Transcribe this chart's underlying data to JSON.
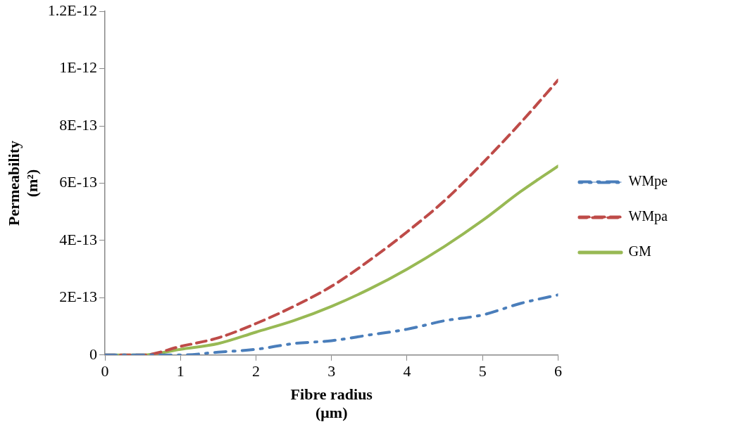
{
  "chart_data": {
    "type": "line",
    "xlabel": "Fibre radius\n(μm)",
    "ylabel": "Permeability\n(m²)",
    "x": [
      0,
      0.5,
      1,
      1.5,
      2,
      2.5,
      3,
      3.5,
      4,
      4.5,
      5,
      5.5,
      6
    ],
    "series": [
      {
        "name": "WMpe",
        "color": "#4a7ebb",
        "line_style": "dashdot",
        "values": [
          0,
          0,
          0,
          1e-14,
          2e-14,
          4e-14,
          5e-14,
          7e-14,
          9e-14,
          1.2e-13,
          1.4e-13,
          1.8e-13,
          2.1e-13
        ]
      },
      {
        "name": "WMpa",
        "color": "#be4b48",
        "line_style": "dashed",
        "values": [
          0,
          0,
          3e-14,
          6e-14,
          1.1e-13,
          1.7e-13,
          2.4e-13,
          3.3e-13,
          4.3e-13,
          5.4e-13,
          6.7e-13,
          8.1e-13,
          9.6e-13
        ]
      },
      {
        "name": "GM",
        "color": "#98b954",
        "line_style": "solid",
        "values": [
          0,
          0,
          2e-14,
          4e-14,
          8e-14,
          1.2e-13,
          1.7e-13,
          2.3e-13,
          3e-13,
          3.8e-13,
          4.7e-13,
          5.7e-13,
          6.6e-13
        ]
      }
    ],
    "xlim": [
      0,
      6
    ],
    "xticks": [
      0,
      1,
      2,
      3,
      4,
      5,
      6
    ],
    "ylim": [
      0,
      1.2e-12
    ],
    "yticks": [
      0,
      {
        "value": 2e-13,
        "label": "2E-13"
      },
      {
        "value": 4e-13,
        "label": "4E-13"
      },
      {
        "value": 6e-13,
        "label": "6E-13"
      },
      {
        "value": 8e-13,
        "label": "8E-13"
      },
      {
        "value": 1e-12,
        "label": "1E-12"
      },
      {
        "value": 1.2e-12,
        "label": "1.2E-12"
      }
    ],
    "grid": false,
    "legend": "right",
    "marker": "none"
  }
}
